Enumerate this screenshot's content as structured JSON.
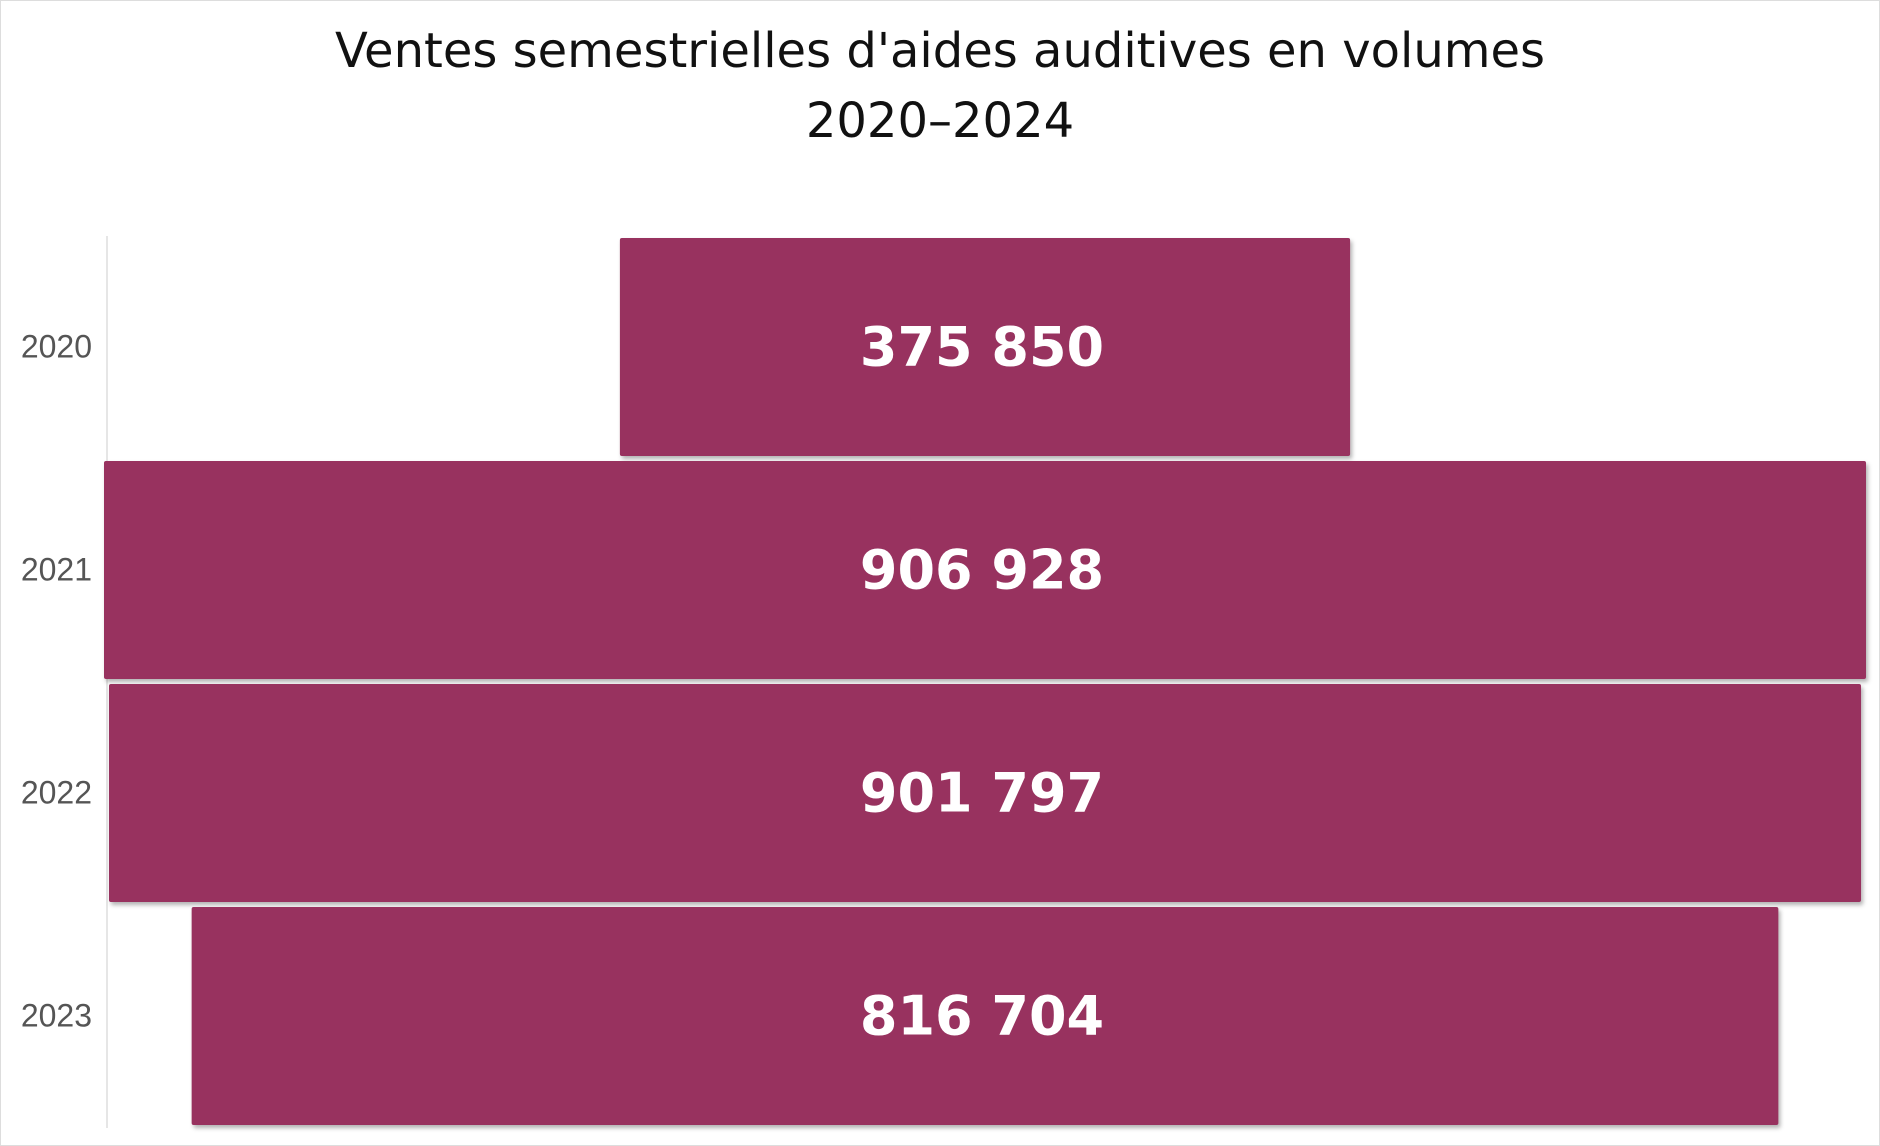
{
  "chart_data": {
    "type": "funnel",
    "title": "Ventes semestrielles d'aides auditives en volumes",
    "subtitle": "2020–2024",
    "categories": [
      "2020",
      "2021",
      "2022",
      "2023"
    ],
    "values": [
      375850,
      906928,
      901797,
      816704
    ],
    "value_labels": [
      "375 850",
      "906 928",
      "901 797",
      "816 704"
    ],
    "color": "#98335f"
  }
}
